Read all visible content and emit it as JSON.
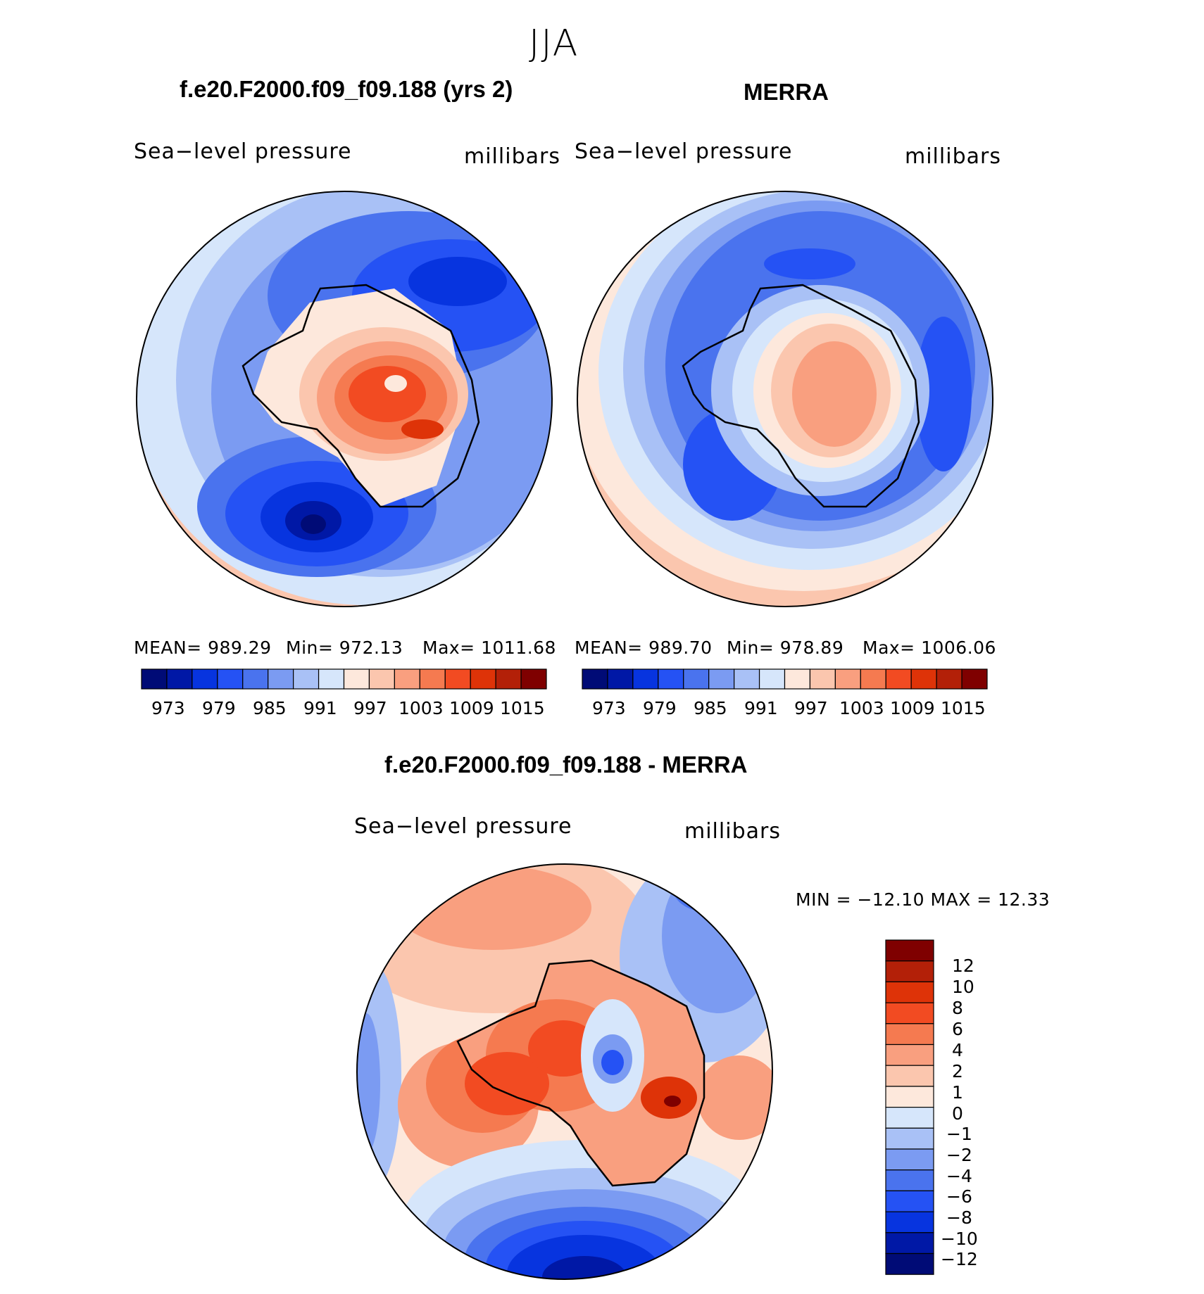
{
  "season": "JJA",
  "colors": {
    "abs_scale": [
      "#000b76",
      "#0018a6",
      "#0734df",
      "#2552f4",
      "#4a73ee",
      "#7b9bf2",
      "#a9c1f6",
      "#d6e6fb",
      "#fde8dc",
      "#fbc6ae",
      "#f99f7f",
      "#f57a50",
      "#f24b22",
      "#de3308",
      "#b32008",
      "#7f0000"
    ],
    "diff_scale": [
      "#000b76",
      "#0018a6",
      "#0734df",
      "#2552f4",
      "#4a73ee",
      "#7b9bf2",
      "#a9c1f6",
      "#d6e6fb",
      "#fde8dc",
      "#fbc6ae",
      "#f99f7f",
      "#f57a50",
      "#f24b22",
      "#de3308",
      "#b32008",
      "#7f0000"
    ]
  },
  "panels": {
    "model": {
      "title": "f.e20.F2000.f09_f09.188 (yrs 2)",
      "left_label": "Sea−level  pressure",
      "right_label": "millibars",
      "mean_text": "MEAN=  989.29",
      "min_text": "Min=  972.13",
      "max_text": "Max=  1011.68"
    },
    "merra": {
      "title": "MERRA",
      "left_label": "Sea−level  pressure",
      "right_label": "millibars",
      "mean_text": "MEAN=  989.70",
      "min_text": "Min=  978.89",
      "max_text": "Max=  1006.06"
    },
    "diff": {
      "title": "f.e20.F2000.f09_f09.188 - MERRA",
      "left_label": "Sea−level  pressure",
      "right_label": "millibars",
      "minmax_text": "MIN  =  −12.10  MAX  =    12.33"
    }
  },
  "chart_data": [
    {
      "type": "heatmap",
      "projection": "south-polar-stereographic",
      "title": "f.e20.F2000.f09_f09.188 (yrs 2)",
      "variable": "Sea-level pressure",
      "units": "millibars",
      "mean": 989.29,
      "min": 972.13,
      "max": 1011.68,
      "colorbar_ticks": [
        "973",
        "979",
        "985",
        "991",
        "997",
        "1003",
        "1009",
        "1015"
      ]
    },
    {
      "type": "heatmap",
      "projection": "south-polar-stereographic",
      "title": "MERRA",
      "variable": "Sea-level pressure",
      "units": "millibars",
      "mean": 989.7,
      "min": 978.89,
      "max": 1006.06,
      "colorbar_ticks": [
        "973",
        "979",
        "985",
        "991",
        "997",
        "1003",
        "1009",
        "1015"
      ]
    },
    {
      "type": "heatmap",
      "projection": "south-polar-stereographic",
      "title": "f.e20.F2000.f09_f09.188 - MERRA",
      "variable": "Sea-level pressure",
      "units": "millibars",
      "min": -12.1,
      "max": 12.33,
      "colorbar_ticks": [
        "12",
        "10",
        "8",
        "6",
        "4",
        "2",
        "1",
        "0",
        "−1",
        "−2",
        "−4",
        "−6",
        "−8",
        "−10",
        "−12"
      ]
    }
  ]
}
